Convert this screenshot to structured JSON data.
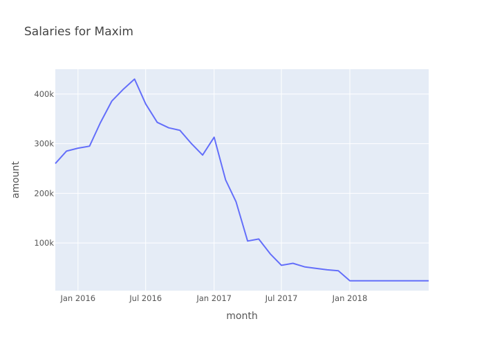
{
  "chart_data": {
    "type": "line",
    "title": "Salaries for Maxim",
    "xlabel": "month",
    "ylabel": "amount",
    "x_ticks": [
      {
        "date": "2016-01-01",
        "label": "Jan 2016"
      },
      {
        "date": "2016-07-01",
        "label": "Jul 2016"
      },
      {
        "date": "2017-01-01",
        "label": "Jan 2017"
      },
      {
        "date": "2017-07-01",
        "label": "Jul 2017"
      },
      {
        "date": "2018-01-01",
        "label": "Jan 2018"
      }
    ],
    "y_ticks": [
      {
        "value": 100000,
        "label": "100k"
      },
      {
        "value": 200000,
        "label": "200k"
      },
      {
        "value": 300000,
        "label": "300k"
      },
      {
        "value": 400000,
        "label": "400k"
      }
    ],
    "xlim": [
      "2015-11-01",
      "2018-08-01"
    ],
    "ylim": [
      4000,
      450000
    ],
    "grid": true,
    "background": "#e5ecf6",
    "line_color": "#636efa",
    "series": [
      {
        "x": [
          "2015-11-01",
          "2015-12-01",
          "2016-01-01",
          "2016-02-01",
          "2016-03-01",
          "2016-04-01",
          "2016-05-01",
          "2016-06-01",
          "2016-07-01",
          "2016-08-01",
          "2016-09-01",
          "2016-10-01",
          "2016-11-01",
          "2016-12-01",
          "2017-01-01",
          "2017-02-01",
          "2017-03-01",
          "2017-04-01",
          "2017-05-01",
          "2017-06-01",
          "2017-07-01",
          "2017-08-01",
          "2017-09-01",
          "2017-10-01",
          "2017-11-01",
          "2017-12-01",
          "2018-01-01",
          "2018-02-01",
          "2018-03-01",
          "2018-04-01",
          "2018-05-01",
          "2018-06-01",
          "2018-07-01",
          "2018-08-01"
        ],
        "y": [
          260000,
          285000,
          291000,
          295000,
          342000,
          386000,
          409000,
          430000,
          380000,
          343000,
          332000,
          327000,
          300000,
          277000,
          313000,
          227000,
          183000,
          104000,
          108000,
          78000,
          55000,
          59000,
          52000,
          49000,
          46000,
          44000,
          24000,
          24000,
          24000,
          24000,
          24000,
          24000,
          24000,
          24000
        ]
      }
    ]
  }
}
